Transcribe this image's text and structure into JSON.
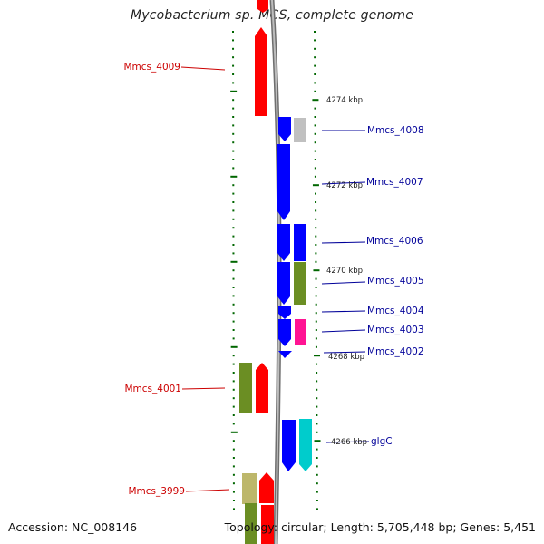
{
  "title": "Mycobacterium sp. MCS, complete genome",
  "accession": "Accession: NC_008146",
  "topology": "Topology: circular; Length: 5,705,448 bp; Genes: 5,451",
  "colors": {
    "forward_gene": "#ff0000",
    "reverse_gene": "#0000ff",
    "forward_label": "#cc0000",
    "reverse_label": "#000099",
    "tick": "#006600",
    "backbone": "#888888"
  },
  "scale_ticks": [
    "4274 kbp",
    "4272 kbp",
    "4270 kbp",
    "4268 kbp",
    "4266 kbp"
  ],
  "gene_labels_left": [
    "Mmcs_4009",
    "Mmcs_4001",
    "Mmcs_3999"
  ],
  "gene_labels_right": [
    "Mmcs_4008",
    "Mmcs_4007",
    "Mmcs_4006",
    "Mmcs_4005",
    "Mmcs_4004",
    "Mmcs_4003",
    "Mmcs_4002",
    "glgC"
  ],
  "feature_colors": {
    "red": "#ff0000",
    "blue": "#0000ff",
    "gray": "#c0c0c0",
    "olive": "#6b8e23",
    "magenta": "#ff1493",
    "cyan": "#00cccc",
    "khaki": "#bdb76b"
  }
}
